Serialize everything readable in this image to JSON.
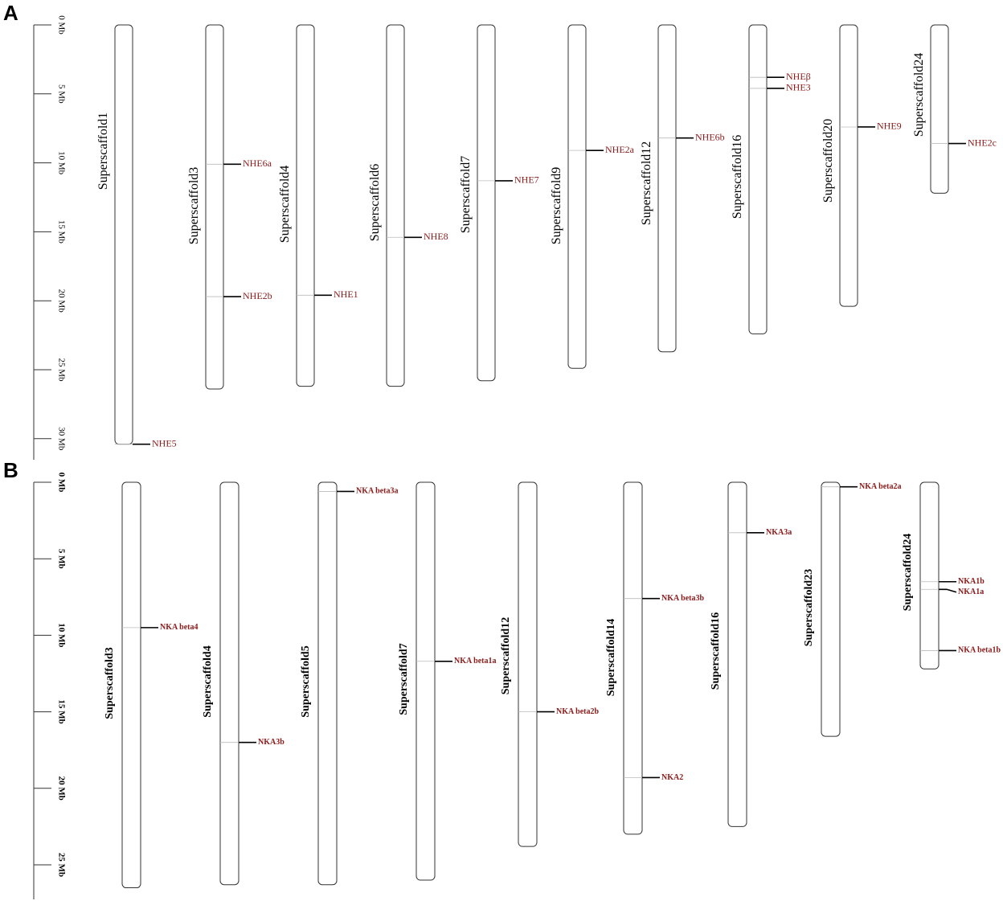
{
  "panels": [
    {
      "letter": "A",
      "scale_ticks": [
        "0 Mb",
        "5 Mb",
        "10 Mb",
        "15 Mb",
        "20 Mb",
        "25 Mb",
        "30 Mb"
      ],
      "chromosomes": [
        {
          "name": "Superscaffold1",
          "length_mb": 30.4,
          "genes": [
            {
              "name": "NHE5",
              "pos_mb": 30.4
            }
          ]
        },
        {
          "name": "Superscaffold3",
          "length_mb": 26.4,
          "genes": [
            {
              "name": "NHE6a",
              "pos_mb": 10.1
            },
            {
              "name": "NHE2b",
              "pos_mb": 19.7
            }
          ]
        },
        {
          "name": "Superscaffold4",
          "length_mb": 26.2,
          "genes": [
            {
              "name": "NHE1",
              "pos_mb": 19.6
            }
          ]
        },
        {
          "name": "Superscaffold6",
          "length_mb": 26.2,
          "genes": [
            {
              "name": "NHE8",
              "pos_mb": 15.4
            }
          ]
        },
        {
          "name": "Superscaffold7",
          "length_mb": 25.8,
          "genes": [
            {
              "name": "NHE7",
              "pos_mb": 11.3
            }
          ]
        },
        {
          "name": "Superscaffold9",
          "length_mb": 24.9,
          "genes": [
            {
              "name": "NHE2a",
              "pos_mb": 9.1
            }
          ]
        },
        {
          "name": "Superscaffold12",
          "length_mb": 23.7,
          "genes": [
            {
              "name": "NHE6b",
              "pos_mb": 8.2
            }
          ]
        },
        {
          "name": "Superscaffold16",
          "length_mb": 22.4,
          "genes": [
            {
              "name": "NHEβ",
              "pos_mb": 3.8
            },
            {
              "name": "NHE3",
              "pos_mb": 4.6
            }
          ]
        },
        {
          "name": "Superscaffold20",
          "length_mb": 20.4,
          "genes": [
            {
              "name": "NHE9",
              "pos_mb": 7.4
            }
          ]
        },
        {
          "name": "Superscaffold24",
          "length_mb": 12.2,
          "genes": [
            {
              "name": "NHE2c",
              "pos_mb": 8.6
            }
          ]
        }
      ]
    },
    {
      "letter": "B",
      "scale_ticks": [
        "0 Mb",
        "5 Mb",
        "10 Mb",
        "15 Mb",
        "20 Mb",
        "25 Mb"
      ],
      "chromosomes": [
        {
          "name": "Superscaffold3",
          "length_mb": 26.5,
          "genes": [
            {
              "name": "NKA beta4",
              "pos_mb": 9.5
            }
          ]
        },
        {
          "name": "Superscaffold4",
          "length_mb": 26.3,
          "genes": [
            {
              "name": "NKA3b",
              "pos_mb": 17.0
            }
          ]
        },
        {
          "name": "Superscaffold5",
          "length_mb": 26.3,
          "genes": [
            {
              "name": "NKA beta3a",
              "pos_mb": 0.6
            }
          ]
        },
        {
          "name": "Superscaffold7",
          "length_mb": 26.0,
          "genes": [
            {
              "name": "NKA beta1a",
              "pos_mb": 11.7
            }
          ]
        },
        {
          "name": "Superscaffold12",
          "length_mb": 23.8,
          "genes": [
            {
              "name": "NKA beta2b",
              "pos_mb": 15.0
            }
          ]
        },
        {
          "name": "Superscaffold14",
          "length_mb": 23.0,
          "genes": [
            {
              "name": "NKA beta3b",
              "pos_mb": 7.6
            },
            {
              "name": "NKA2",
              "pos_mb": 19.3
            }
          ]
        },
        {
          "name": "Superscaffold16",
          "length_mb": 22.5,
          "genes": [
            {
              "name": "NKA3a",
              "pos_mb": 3.3
            }
          ]
        },
        {
          "name": "Superscaffold23",
          "length_mb": 16.6,
          "genes": [
            {
              "name": "NKA beta2a",
              "pos_mb": 0.3
            }
          ]
        },
        {
          "name": "Superscaffold24",
          "length_mb": 12.2,
          "genes": [
            {
              "name": "NKA1b",
              "pos_mb": 6.5
            },
            {
              "name": "NKA1a",
              "pos_mb": 7.0
            },
            {
              "name": "NKA beta1b",
              "pos_mb": 11.0
            }
          ]
        }
      ]
    }
  ],
  "colors": {
    "gene_label": "#8b1a1a",
    "outline": "#333333",
    "marker": "#000000"
  }
}
